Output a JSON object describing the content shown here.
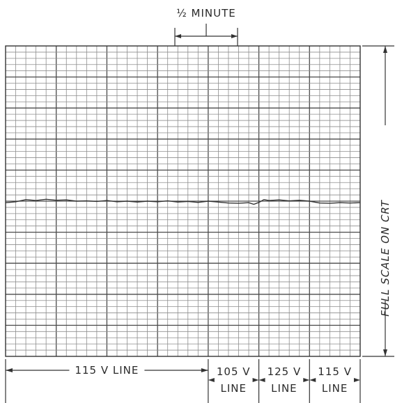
{
  "chart_data": {
    "type": "line",
    "title": "",
    "xlabel": "",
    "ylabel": "FULL SCALE ON CRT",
    "scale_marker": "½ MINUTE",
    "segments": [
      {
        "label": "115 V LINE",
        "minutes": [
          0,
          2.0
        ]
      },
      {
        "label": "105 V LINE",
        "minutes": [
          2.0,
          2.5
        ]
      },
      {
        "label": "125 V LINE",
        "minutes": [
          2.5,
          3.0
        ]
      },
      {
        "label": "115 V LINE",
        "minutes": [
          3.0,
          3.5
        ]
      }
    ],
    "xlim": [
      0,
      3.5
    ],
    "ylim": [
      0,
      1
    ],
    "grid": true,
    "series": [
      {
        "x": [
          0,
          0.1,
          0.2,
          0.3,
          0.4,
          0.5,
          0.6,
          0.7,
          0.8,
          0.9,
          1.0,
          1.1,
          1.2,
          1.3,
          1.4,
          1.5,
          1.6,
          1.7,
          1.8,
          1.9,
          2.0,
          2.1,
          2.2,
          2.3,
          2.4,
          2.45,
          2.5,
          2.55,
          2.6,
          2.7,
          2.8,
          2.9,
          3.0,
          3.1,
          3.2,
          3.3,
          3.4,
          3.5
        ],
        "y": [
          0.495,
          0.498,
          0.505,
          0.502,
          0.506,
          0.503,
          0.504,
          0.5,
          0.501,
          0.499,
          0.502,
          0.498,
          0.5,
          0.497,
          0.5,
          0.498,
          0.501,
          0.497,
          0.499,
          0.496,
          0.5,
          0.497,
          0.494,
          0.493,
          0.495,
          0.49,
          0.496,
          0.505,
          0.502,
          0.504,
          0.501,
          0.503,
          0.5,
          0.494,
          0.493,
          0.495,
          0.494,
          0.495
        ]
      }
    ]
  }
}
